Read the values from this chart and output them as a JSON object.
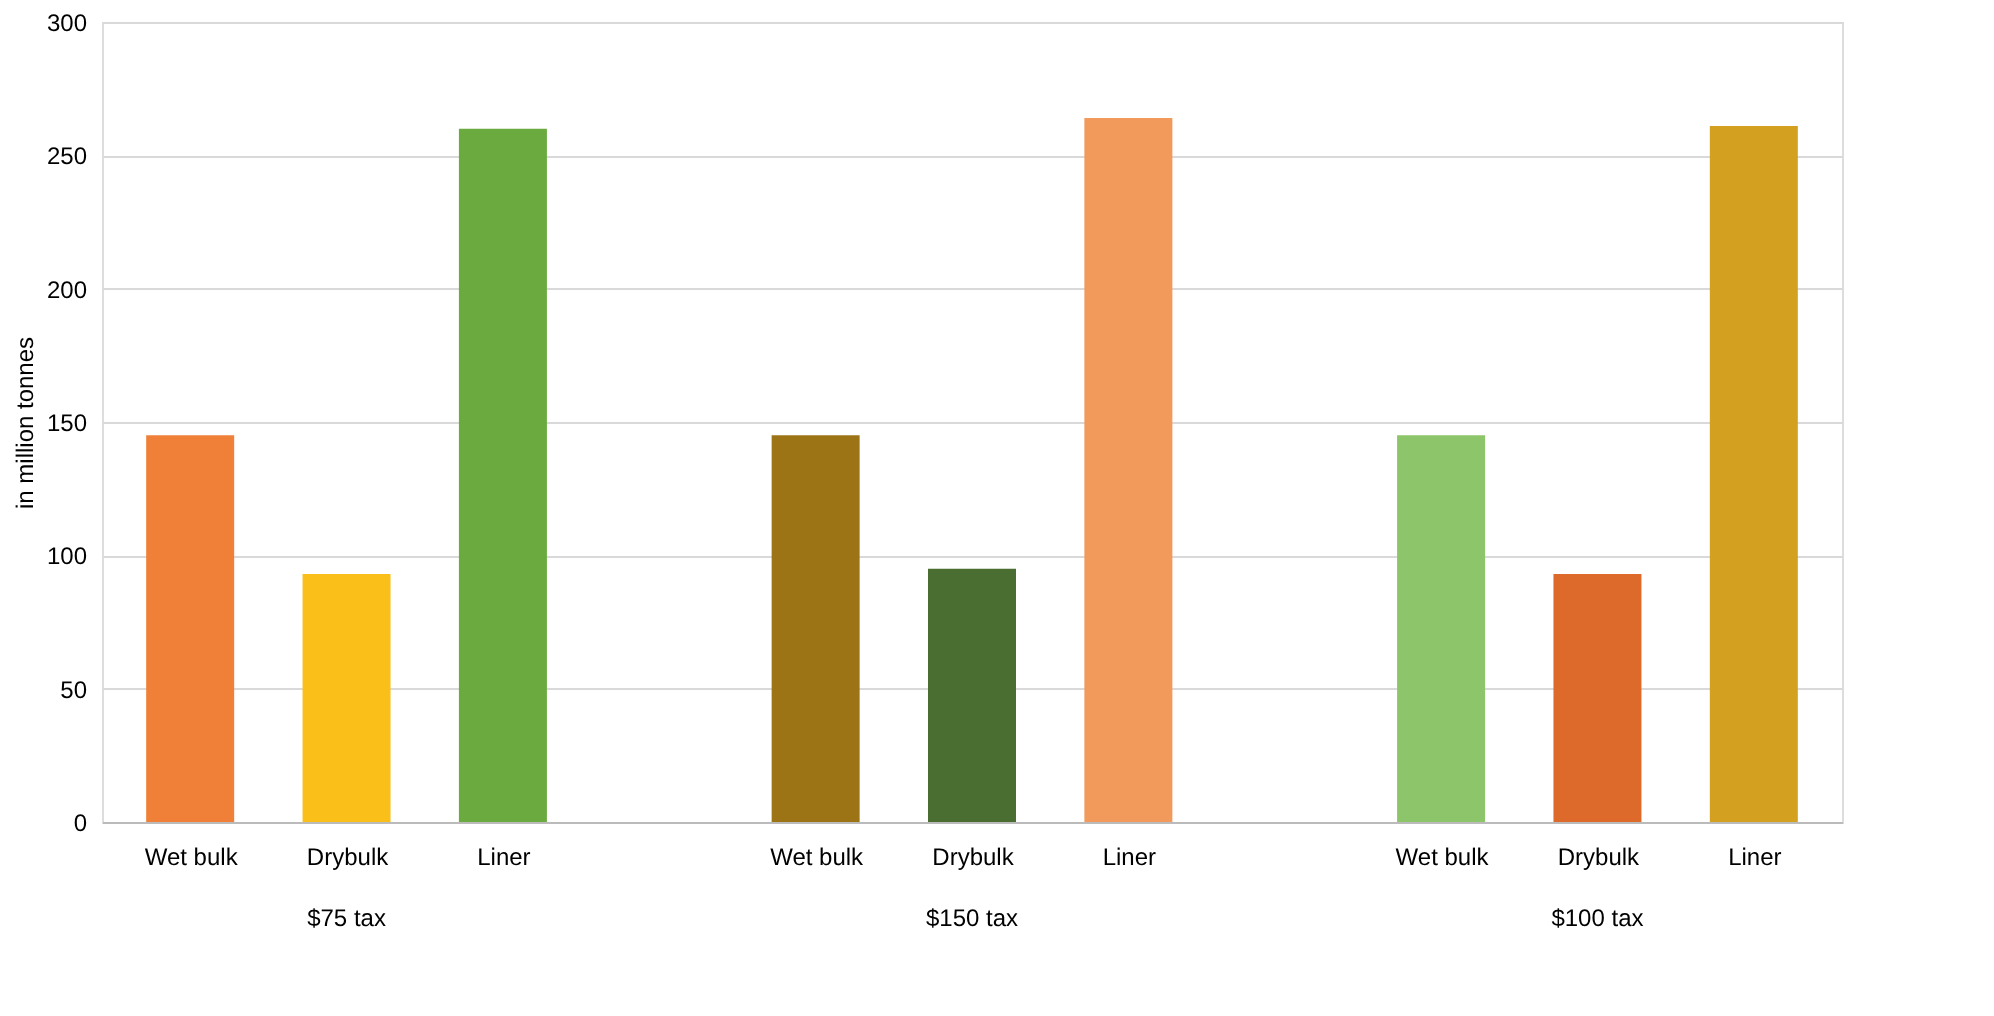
{
  "chart_data": {
    "type": "bar",
    "ylabel": "in million tonnes",
    "categories": [
      "Wet bulk",
      "Drybulk",
      "Liner",
      null,
      "Wet bulk",
      "Drybulk",
      "Liner",
      null,
      "Wet bulk",
      "Drybulk",
      "Liner"
    ],
    "values": [
      145,
      93,
      260,
      null,
      145,
      95,
      264,
      null,
      145,
      93,
      261
    ],
    "colors": [
      "#f08038",
      "#fbbf1a",
      "#6aaa3e",
      null,
      "#9c7416",
      "#4a6e32",
      "#f29a5c",
      null,
      "#8cc56a",
      "#dd6a2a",
      "#d4a020"
    ],
    "annotations": [
      "$75 tax",
      "$150 tax",
      "$100 tax"
    ],
    "ylim": [
      0,
      300
    ],
    "yticks": [
      0,
      50,
      100,
      150,
      200,
      250,
      300
    ],
    "grid": "y"
  }
}
